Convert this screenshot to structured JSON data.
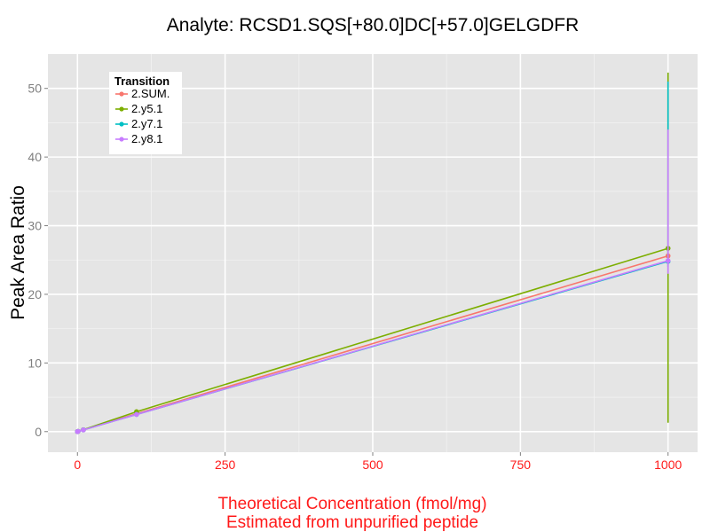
{
  "chart_data": {
    "type": "line",
    "title": "Analyte: RCSD1.SQS[+80.0]DC[+57.0]GELGDFR",
    "ylabel": "Peak Area Ratio",
    "xlabel_lines": [
      "Theoretical Concentration (fmol/mg)",
      "Estimated from unpurified peptide"
    ],
    "x_ticks": [
      0,
      250,
      500,
      750,
      1000
    ],
    "y_ticks": [
      0,
      10,
      20,
      30,
      40,
      50
    ],
    "xlim": [
      -50,
      1050
    ],
    "ylim": [
      -3,
      55
    ],
    "grid": true,
    "legend": {
      "title": "Transition",
      "placement": "top-left"
    },
    "series": [
      {
        "name": "2.SUM.",
        "color": "#f8766d",
        "points": [
          [
            0,
            0.0
          ],
          [
            1,
            0.03
          ],
          [
            10,
            0.26
          ],
          [
            100,
            2.6
          ],
          [
            1000,
            25.6
          ]
        ],
        "errorbar": {
          "x": 1000,
          "low": 24.5,
          "high": 26.5
        }
      },
      {
        "name": "2.y5.1",
        "color": "#7cae00",
        "points": [
          [
            0,
            0.0
          ],
          [
            1,
            0.03
          ],
          [
            10,
            0.27
          ],
          [
            100,
            2.9
          ],
          [
            1000,
            26.7
          ]
        ],
        "errorbar": {
          "x": 1000,
          "low": 1.3,
          "high": 52.3
        }
      },
      {
        "name": "2.y7.1",
        "color": "#00bfc4",
        "points": [
          [
            0,
            0.0
          ],
          [
            1,
            0.03
          ],
          [
            10,
            0.25
          ],
          [
            100,
            2.5
          ],
          [
            1000,
            24.8
          ]
        ],
        "errorbar": {
          "x": 1000,
          "low": 24.0,
          "high": 51.0
        }
      },
      {
        "name": "2.y8.1",
        "color": "#c77cff",
        "points": [
          [
            0,
            0.0
          ],
          [
            1,
            0.03
          ],
          [
            10,
            0.25
          ],
          [
            100,
            2.5
          ],
          [
            1000,
            24.9
          ]
        ],
        "errorbar": {
          "x": 1000,
          "low": 23.0,
          "high": 44.0
        }
      }
    ]
  }
}
